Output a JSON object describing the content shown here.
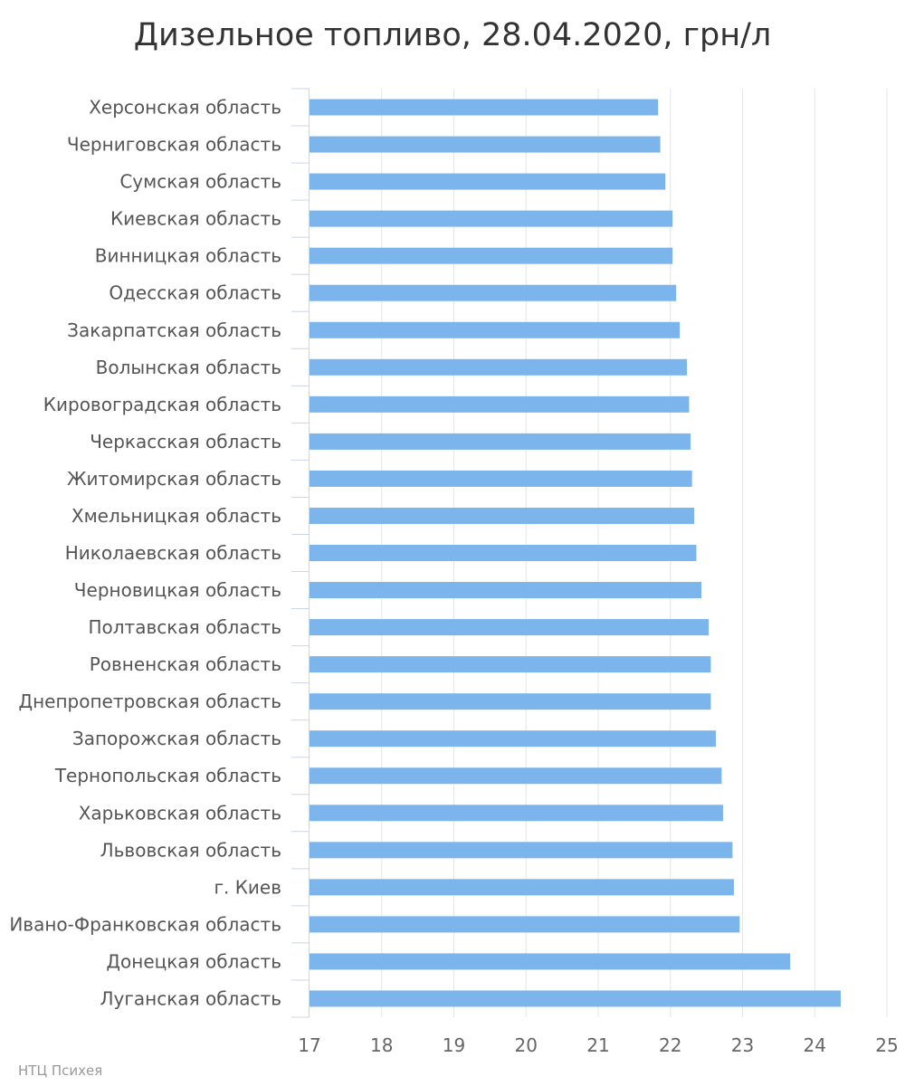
{
  "chart_data": {
    "type": "bar",
    "orientation": "horizontal",
    "title": "Дизельное топливо, 28.04.2020, грн/л",
    "xlabel": "",
    "ylabel": "",
    "categories": [
      "Херсонская область",
      "Черниговская область",
      "Сумская область",
      "Киевская область",
      "Винницкая область",
      "Одесская область",
      "Закарпатская область",
      "Волынская область",
      "Кировоградская область",
      "Черкасская область",
      "Житомирская область",
      "Хмельницкая область",
      "Николаевская область",
      "Черновицкая область",
      "Полтавская область",
      "Ровненская область",
      "Днепропетровская область",
      "Запорожская область",
      "Тернопольская область",
      "Харьковская область",
      "Львовская область",
      "г. Киев",
      "Ивано-Франковская область",
      "Донецкая область",
      "Луганская область"
    ],
    "values": [
      21.83,
      21.86,
      21.93,
      22.03,
      22.03,
      22.08,
      22.13,
      22.23,
      22.26,
      22.28,
      22.3,
      22.33,
      22.36,
      22.43,
      22.53,
      22.56,
      22.56,
      22.63,
      22.71,
      22.73,
      22.86,
      22.88,
      22.96,
      23.66,
      24.36
    ],
    "xlim": [
      17,
      25
    ],
    "ticks": [
      "17",
      "18",
      "19",
      "20",
      "21",
      "22",
      "23",
      "24",
      "25"
    ],
    "grid": true,
    "legend": "none",
    "colors": {
      "bar": "#7cb5ec",
      "grid": "#e6e6e6",
      "axis": "#ccd6eb"
    }
  },
  "credit": "НТЦ Психея"
}
